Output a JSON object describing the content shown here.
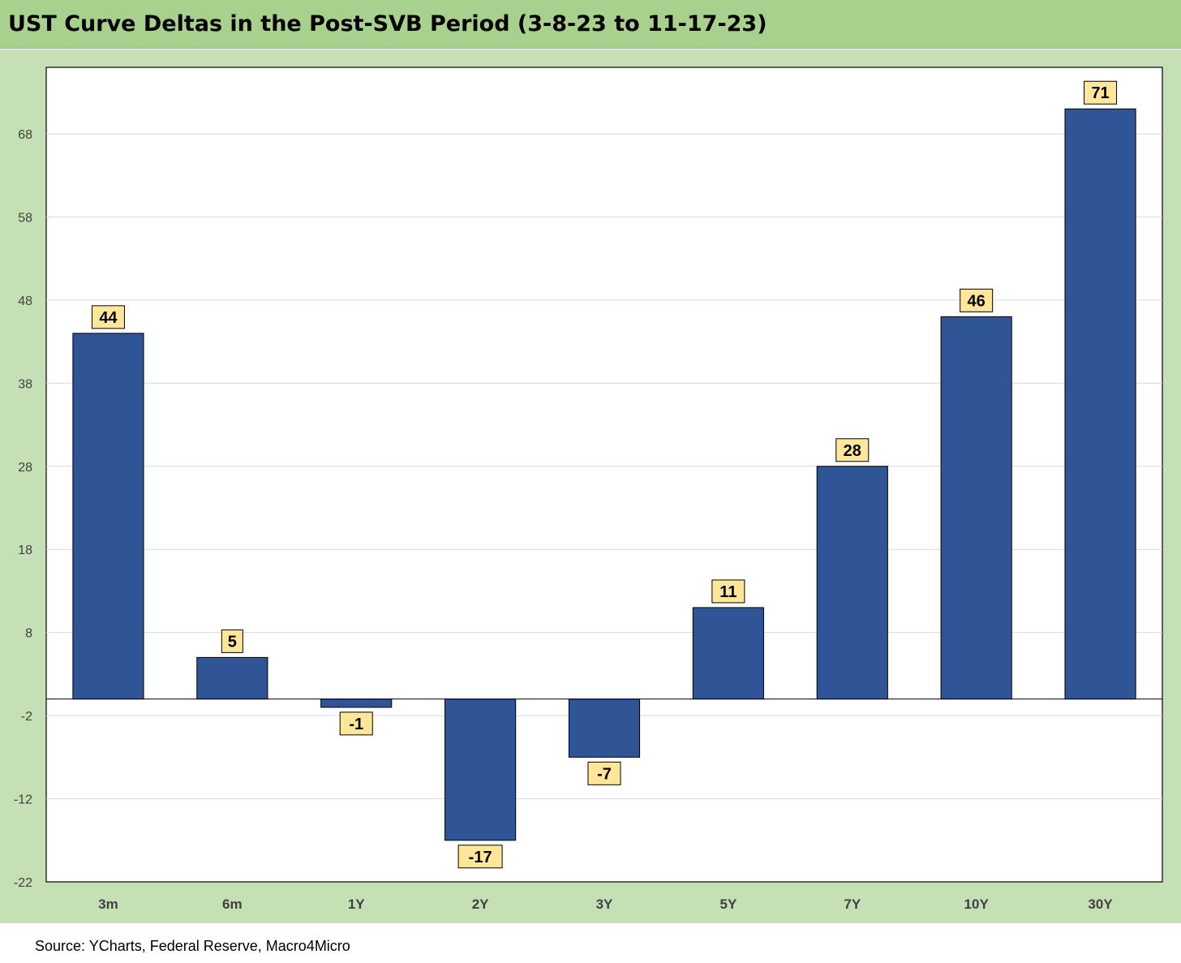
{
  "header": {
    "title": "UST Curve Deltas in the Post-SVB Period (3-8-23 to 11-17-23)"
  },
  "footer": {
    "source": "Source: YCharts, Federal Reserve, Macro4Micro"
  },
  "colors": {
    "bar": "#2f5597",
    "label_box": "#ffe699",
    "panel": "#c5e0b4",
    "title_band": "#a9d18e"
  },
  "chart_data": {
    "type": "bar",
    "title": "UST Curve Deltas in the Post-SVB Period (3-8-23 to 11-17-23)",
    "xlabel": "",
    "ylabel": "",
    "categories": [
      "3m",
      "6m",
      "1Y",
      "2Y",
      "3Y",
      "5Y",
      "7Y",
      "10Y",
      "30Y"
    ],
    "values": [
      44,
      5,
      -1,
      -17,
      -7,
      11,
      28,
      46,
      71
    ],
    "data_labels": [
      "44",
      "5",
      "-1",
      "-17",
      "-7",
      "11",
      "28",
      "46",
      "71"
    ],
    "yticks": [
      68,
      58,
      48,
      38,
      28,
      18,
      8,
      -2,
      -12,
      -22
    ],
    "ytick_labels": [
      "68",
      "58",
      "48",
      "38",
      "28",
      "18",
      "8",
      "-2",
      "-12",
      "-22"
    ],
    "ylim": [
      -22,
      76
    ],
    "grid": true,
    "legend": "none"
  }
}
